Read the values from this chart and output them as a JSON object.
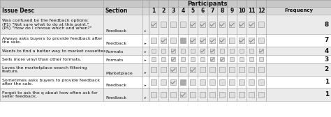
{
  "title": "Participants",
  "rows": [
    {
      "issue": "Was confused by the feedback options:\n(P1) \"Not sure what to do at this point.\"\n(P5) \"How do I choose which and when?\"",
      "section": "Feedback",
      "checks": [
        1,
        0,
        0,
        0,
        1,
        1,
        1,
        1,
        1,
        1,
        1,
        0
      ],
      "highlighted": [],
      "highlighted_cols": [],
      "frequency": "8"
    },
    {
      "issue": "Always asks buyers to provide feedback after\nthe sale.",
      "section": "Feedback",
      "checks": [
        0,
        1,
        0,
        0,
        1,
        1,
        1,
        1,
        0,
        1,
        1,
        0
      ],
      "highlighted": [],
      "highlighted_cols": [
        3
      ],
      "frequency": "7"
    },
    {
      "issue": "Wants to find a better way to market cassettes",
      "section": "Formats",
      "checks": [
        0,
        0,
        1,
        0,
        0,
        1,
        1,
        0,
        0,
        0,
        0,
        1
      ],
      "highlighted": [],
      "highlighted_cols": [],
      "frequency": "4"
    },
    {
      "issue": "Sells more vinyl than other formats.",
      "section": "Formats",
      "checks": [
        0,
        0,
        1,
        0,
        0,
        0,
        1,
        1,
        0,
        0,
        0,
        0
      ],
      "highlighted": [],
      "highlighted_cols": [],
      "frequency": "3"
    },
    {
      "issue": "Loves the marketplace search filtering\nfeature.",
      "section": "Marketplace",
      "checks": [
        0,
        0,
        1,
        0,
        1,
        0,
        0,
        0,
        0,
        0,
        0,
        0
      ],
      "highlighted": [],
      "highlighted_cols": [],
      "frequency": "2"
    },
    {
      "issue": "Sometimes asks buyers to provide feedback\nafter the sale.",
      "section": "Feedback",
      "checks": [
        0,
        0,
        1,
        0,
        0,
        0,
        0,
        0,
        0,
        0,
        0,
        0
      ],
      "highlighted": [],
      "highlighted_cols": [
        3
      ],
      "frequency": "1"
    },
    {
      "issue": "Forgot to ask the q about how often ask for\nseller feedback.",
      "section": "Feedback",
      "checks": [
        0,
        0,
        0,
        1,
        0,
        0,
        0,
        0,
        0,
        0,
        0,
        0
      ],
      "highlighted": [],
      "highlighted_cols": [],
      "frequency": "1"
    }
  ],
  "header_gray": "#c8c8c8",
  "subheader_gray": "#d8d8d8",
  "row_gray": "#ebebeb",
  "row_white": "#ffffff",
  "check_bg": "#e0e0e0",
  "check_checked_color": "#888888",
  "highlight_bg": "#aaaaaa",
  "highlight_check_color": "#ffffff",
  "border_color": "#999999",
  "text_color": "#111111",
  "freq_color": "#111111"
}
